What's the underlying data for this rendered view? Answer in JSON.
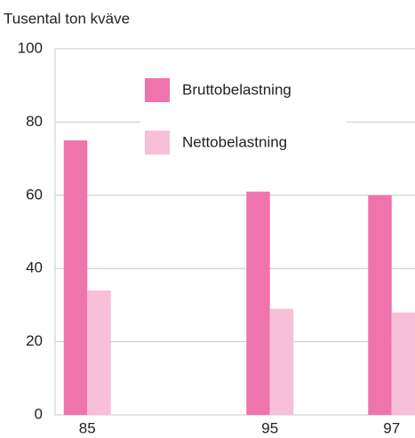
{
  "chart_data": {
    "type": "bar",
    "y_axis_label": "Tusental ton kväve",
    "categories": [
      "85",
      null,
      null,
      "95",
      null,
      "97"
    ],
    "series": [
      {
        "name": "Bruttobelastning",
        "color": "#f074ac",
        "values": [
          75,
          null,
          null,
          61,
          null,
          60
        ]
      },
      {
        "name": "Nettobelastning",
        "color": "#f7c0d8",
        "values": [
          34,
          null,
          null,
          29,
          null,
          28
        ]
      }
    ],
    "ylim": [
      0,
      100
    ],
    "yticks": [
      0,
      20,
      40,
      60,
      80,
      100
    ],
    "grid": true
  }
}
